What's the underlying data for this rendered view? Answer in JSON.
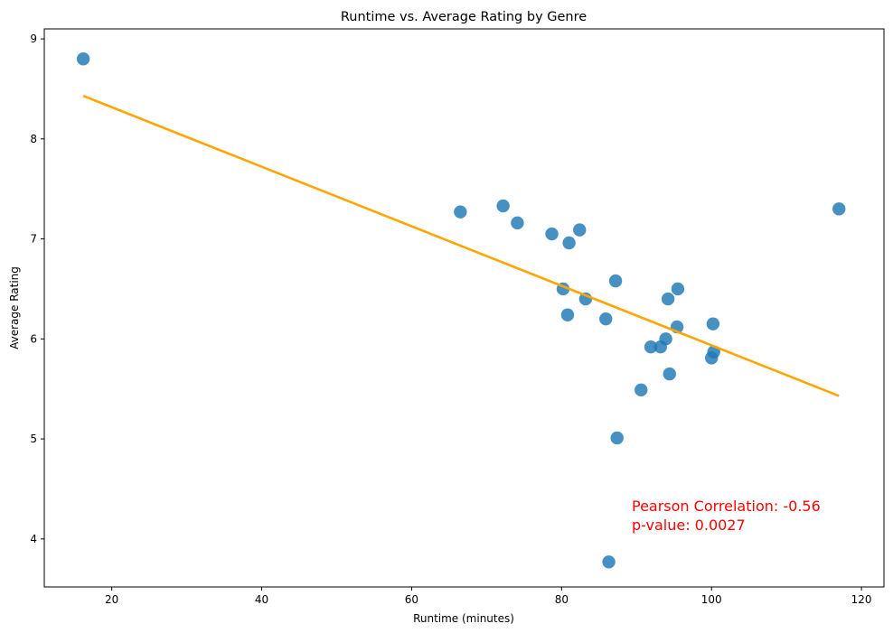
{
  "chart_data": {
    "type": "scatter",
    "title": "Runtime vs. Average Rating by Genre",
    "xlabel": "Runtime (minutes)",
    "ylabel": "Average Rating",
    "xlim": [
      11,
      123
    ],
    "ylim": [
      3.52,
      9.1
    ],
    "xticks": [
      20,
      40,
      60,
      80,
      100,
      120
    ],
    "yticks": [
      4,
      5,
      6,
      7,
      8,
      9
    ],
    "grid": false,
    "points": [
      {
        "x": 16.2,
        "y": 8.8
      },
      {
        "x": 66.5,
        "y": 7.27
      },
      {
        "x": 72.2,
        "y": 7.33
      },
      {
        "x": 74.1,
        "y": 7.16
      },
      {
        "x": 78.7,
        "y": 7.05
      },
      {
        "x": 81.0,
        "y": 6.96
      },
      {
        "x": 82.4,
        "y": 7.09
      },
      {
        "x": 80.2,
        "y": 6.5
      },
      {
        "x": 80.8,
        "y": 6.24
      },
      {
        "x": 83.2,
        "y": 6.4
      },
      {
        "x": 85.9,
        "y": 6.2
      },
      {
        "x": 87.2,
        "y": 6.58
      },
      {
        "x": 86.3,
        "y": 3.77
      },
      {
        "x": 87.4,
        "y": 5.01
      },
      {
        "x": 90.6,
        "y": 5.49
      },
      {
        "x": 91.9,
        "y": 5.92
      },
      {
        "x": 93.2,
        "y": 5.92
      },
      {
        "x": 93.9,
        "y": 6.0
      },
      {
        "x": 94.2,
        "y": 6.4
      },
      {
        "x": 94.4,
        "y": 5.65
      },
      {
        "x": 95.4,
        "y": 6.12
      },
      {
        "x": 95.5,
        "y": 6.5
      },
      {
        "x": 100.0,
        "y": 5.81
      },
      {
        "x": 100.3,
        "y": 5.87
      },
      {
        "x": 100.2,
        "y": 6.15
      },
      {
        "x": 117.0,
        "y": 7.3
      }
    ],
    "trendline": {
      "x": [
        16.2,
        117.0
      ],
      "y": [
        8.43,
        5.43
      ]
    },
    "annotation": [
      "Pearson Correlation: -0.56",
      "p-value: 0.0027"
    ],
    "colors": {
      "points": "#1f77b4",
      "trendline": "#ffa500",
      "annotation": "#ff0000"
    }
  }
}
